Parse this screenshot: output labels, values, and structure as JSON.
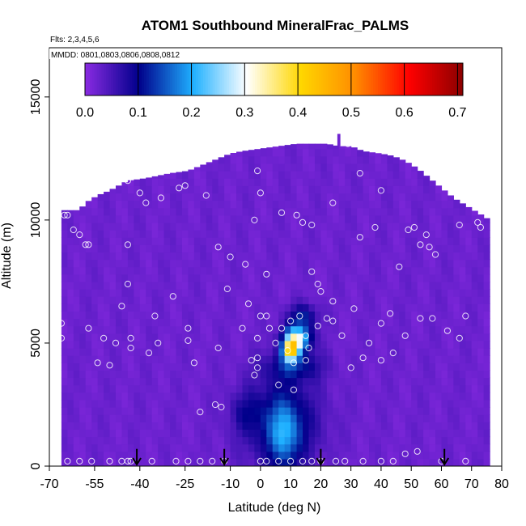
{
  "chart_data": {
    "type": "heatmap",
    "title": "ATOM1 Southbound MineralFrac_PALMS",
    "flights_text": "Flts: 2,3,4,5,6",
    "dates_text": "MMDD: 0801,0803,0806,0808,0812",
    "xlabel": "Latitude (deg N)",
    "ylabel": "Altitude (m)",
    "xlim": [
      -70,
      80
    ],
    "ylim": [
      0,
      17000
    ],
    "x_ticks": [
      -70,
      -55,
      -40,
      -25,
      -10,
      0,
      10,
      20,
      30,
      40,
      50,
      60,
      70,
      80
    ],
    "y_ticks": [
      0,
      5000,
      10000,
      15000
    ],
    "colorbar": {
      "range": [
        0,
        0.71
      ],
      "ticks": [
        0.0,
        0.1,
        0.2,
        0.3,
        0.4,
        0.5,
        0.6,
        0.7
      ],
      "tick_labels": [
        "0.0",
        "0.1",
        "0.2",
        "0.3",
        "0.4",
        "0.5",
        "0.6",
        "0.7"
      ],
      "colors": [
        "#8a2be2",
        "#00008b",
        "#1fb0ff",
        "#ffffff",
        "#ffd700",
        "#ff8c00",
        "#ff0000",
        "#8b0000"
      ]
    },
    "envelope": [
      [
        -66,
        10400
      ],
      [
        -60,
        10400
      ],
      [
        -58,
        10700
      ],
      [
        -54,
        11000
      ],
      [
        -50,
        11200
      ],
      [
        -44,
        11600
      ],
      [
        -38,
        11700
      ],
      [
        -30,
        11900
      ],
      [
        -24,
        12000
      ],
      [
        -20,
        12200
      ],
      [
        -14,
        12500
      ],
      [
        -10,
        12700
      ],
      [
        -6,
        12800
      ],
      [
        0,
        12900
      ],
      [
        6,
        13000
      ],
      [
        12,
        13100
      ],
      [
        18,
        13100
      ],
      [
        22,
        13100
      ],
      [
        26,
        13000
      ],
      [
        30,
        13000
      ],
      [
        34,
        12800
      ],
      [
        40,
        12700
      ],
      [
        44,
        12600
      ],
      [
        48,
        12400
      ],
      [
        52,
        12100
      ],
      [
        56,
        11700
      ],
      [
        60,
        11300
      ],
      [
        64,
        10900
      ],
      [
        68,
        10600
      ],
      [
        72,
        10300
      ],
      [
        76,
        10000
      ]
    ],
    "anomalies": [
      {
        "lat": 7,
        "alt": 1800,
        "value": 0.1,
        "sx": 12,
        "sy": 1800
      },
      {
        "lat": 8,
        "alt": 1200,
        "value": 0.1,
        "sx": 5,
        "sy": 1300
      },
      {
        "lat": 10,
        "alt": 4700,
        "value": 0.33,
        "sx": 2.5,
        "sy": 400
      },
      {
        "lat": 12,
        "alt": 5200,
        "value": 0.27,
        "sx": 4.5,
        "sy": 500
      },
      {
        "lat": 11,
        "alt": 4100,
        "value": 0.09,
        "sx": 9,
        "sy": 600
      },
      {
        "lat": 14,
        "alt": 6100,
        "value": 0.09,
        "sx": 5,
        "sy": 500
      },
      {
        "lat": -5,
        "alt": 2200,
        "value": 0.04,
        "sx": 5,
        "sy": 800
      }
    ],
    "observations": [
      [
        -66,
        5800
      ],
      [
        -66,
        5200
      ],
      [
        -64,
        10200
      ],
      [
        -65,
        10200
      ],
      [
        -62,
        9600
      ],
      [
        -60,
        9400
      ],
      [
        -58,
        9000
      ],
      [
        -57,
        9000
      ],
      [
        -60,
        200
      ],
      [
        -64,
        200
      ],
      [
        -56,
        200
      ],
      [
        -50,
        200
      ],
      [
        -46,
        200
      ],
      [
        -44,
        200
      ],
      [
        -43,
        200
      ],
      [
        -57,
        5600
      ],
      [
        -54,
        4200
      ],
      [
        -52,
        5200
      ],
      [
        -50,
        4100
      ],
      [
        -48,
        5000
      ],
      [
        -46,
        6500
      ],
      [
        -43,
        4800
      ],
      [
        -43,
        5200
      ],
      [
        -44,
        7400
      ],
      [
        -44,
        9000
      ],
      [
        -44,
        11600
      ],
      [
        -40,
        11100
      ],
      [
        -38,
        10700
      ],
      [
        -33,
        10900
      ],
      [
        -27,
        11300
      ],
      [
        -25,
        11400
      ],
      [
        -18,
        11000
      ],
      [
        -14,
        8900
      ],
      [
        -10,
        8500
      ],
      [
        -1,
        12000
      ],
      [
        0,
        11100
      ],
      [
        -2,
        10000
      ],
      [
        -4,
        6600
      ],
      [
        -3,
        4300
      ],
      [
        -6,
        5600
      ],
      [
        -11,
        7200
      ],
      [
        -14,
        4800
      ],
      [
        -15,
        2500
      ],
      [
        -29,
        6900
      ],
      [
        -35,
        6100
      ],
      [
        -24,
        5100
      ],
      [
        -22,
        4200
      ],
      [
        -34,
        5000
      ],
      [
        -37,
        4600
      ],
      [
        -16,
        200
      ],
      [
        -28,
        200
      ],
      [
        -36,
        200
      ],
      [
        -24,
        200
      ],
      [
        -20,
        200
      ],
      [
        -12,
        200
      ],
      [
        0,
        200
      ],
      [
        2,
        200
      ],
      [
        6,
        200
      ],
      [
        10,
        200
      ],
      [
        14,
        200
      ],
      [
        17,
        200
      ],
      [
        20,
        200
      ],
      [
        25,
        200
      ],
      [
        28,
        200
      ],
      [
        34,
        200
      ],
      [
        40,
        200
      ],
      [
        44,
        200
      ],
      [
        48,
        500
      ],
      [
        52,
        600
      ],
      [
        60,
        200
      ],
      [
        68,
        200
      ],
      [
        78,
        200
      ],
      [
        79,
        3300
      ],
      [
        78,
        3200
      ],
      [
        -1,
        5200
      ],
      [
        0,
        6100
      ],
      [
        2,
        6100
      ],
      [
        3,
        5600
      ],
      [
        -1,
        4000
      ],
      [
        -1,
        4400
      ],
      [
        5,
        5000
      ],
      [
        7,
        5600
      ],
      [
        10,
        5900
      ],
      [
        13,
        6100
      ],
      [
        15,
        5300
      ],
      [
        19,
        5700
      ],
      [
        16,
        4800
      ],
      [
        15,
        4300
      ],
      [
        -2,
        3700
      ],
      [
        6,
        3300
      ],
      [
        11,
        3100
      ],
      [
        7,
        10300
      ],
      [
        12,
        10200
      ],
      [
        14,
        9900
      ],
      [
        17,
        9800
      ],
      [
        24,
        10700
      ],
      [
        29,
        13100
      ],
      [
        33,
        11900
      ],
      [
        40,
        11200
      ],
      [
        49,
        9600
      ],
      [
        51,
        9700
      ],
      [
        55,
        9400
      ],
      [
        56,
        8900
      ],
      [
        58,
        8600
      ],
      [
        66,
        9800
      ],
      [
        72,
        9900
      ],
      [
        73,
        9700
      ],
      [
        68,
        6100
      ],
      [
        66,
        5200
      ],
      [
        62,
        5500
      ],
      [
        57,
        6000
      ],
      [
        53,
        6000
      ],
      [
        48,
        5300
      ],
      [
        43,
        6200
      ],
      [
        40,
        5800
      ],
      [
        36,
        5000
      ],
      [
        34,
        4400
      ],
      [
        30,
        4000
      ],
      [
        27,
        5300
      ],
      [
        24,
        5900
      ],
      [
        17,
        7900
      ],
      [
        20,
        7100
      ],
      [
        24,
        6700
      ],
      [
        31,
        6400
      ],
      [
        40,
        4300
      ],
      [
        44,
        4600
      ],
      [
        53,
        9000
      ],
      [
        46,
        8100
      ],
      [
        38,
        9700
      ],
      [
        33,
        9300
      ],
      [
        2,
        7800
      ],
      [
        -5,
        8200
      ],
      [
        19,
        7400
      ],
      [
        22,
        6000
      ],
      [
        9,
        4700
      ],
      [
        -13,
        2400
      ],
      [
        -24,
        5600
      ],
      [
        11,
        4200
      ],
      [
        -20,
        2200
      ]
    ],
    "arrows_lat": [
      -41,
      -12,
      20,
      61
    ]
  }
}
